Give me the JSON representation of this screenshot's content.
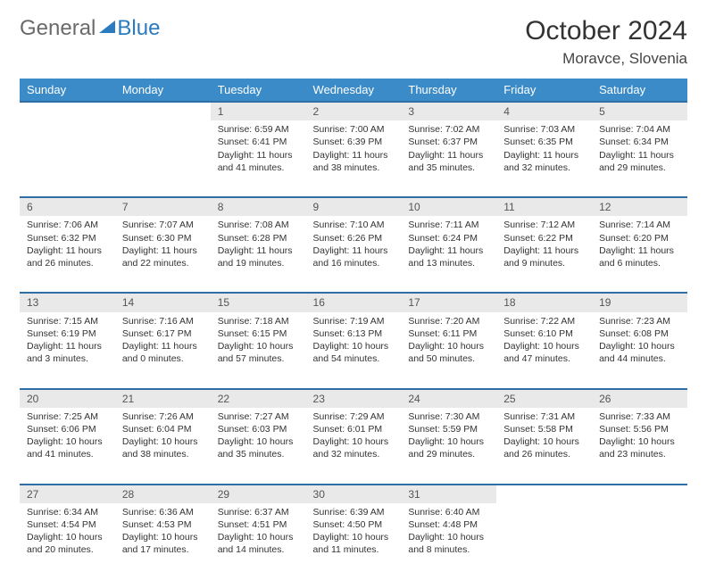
{
  "brand": {
    "part1": "General",
    "part2": "Blue"
  },
  "title": "October 2024",
  "location": "Moravce, Slovenia",
  "header_bg": "#3b8bc8",
  "rule_color": "#2f6fa5",
  "daynum_bg": "#e9e9e9",
  "text_color": "#333333",
  "font_family": "Arial",
  "day_headers": [
    "Sunday",
    "Monday",
    "Tuesday",
    "Wednesday",
    "Thursday",
    "Friday",
    "Saturday"
  ],
  "weeks": [
    [
      null,
      null,
      {
        "n": "1",
        "sr": "6:59 AM",
        "ss": "6:41 PM",
        "dl": "11 hours and 41 minutes."
      },
      {
        "n": "2",
        "sr": "7:00 AM",
        "ss": "6:39 PM",
        "dl": "11 hours and 38 minutes."
      },
      {
        "n": "3",
        "sr": "7:02 AM",
        "ss": "6:37 PM",
        "dl": "11 hours and 35 minutes."
      },
      {
        "n": "4",
        "sr": "7:03 AM",
        "ss": "6:35 PM",
        "dl": "11 hours and 32 minutes."
      },
      {
        "n": "5",
        "sr": "7:04 AM",
        "ss": "6:34 PM",
        "dl": "11 hours and 29 minutes."
      }
    ],
    [
      {
        "n": "6",
        "sr": "7:06 AM",
        "ss": "6:32 PM",
        "dl": "11 hours and 26 minutes."
      },
      {
        "n": "7",
        "sr": "7:07 AM",
        "ss": "6:30 PM",
        "dl": "11 hours and 22 minutes."
      },
      {
        "n": "8",
        "sr": "7:08 AM",
        "ss": "6:28 PM",
        "dl": "11 hours and 19 minutes."
      },
      {
        "n": "9",
        "sr": "7:10 AM",
        "ss": "6:26 PM",
        "dl": "11 hours and 16 minutes."
      },
      {
        "n": "10",
        "sr": "7:11 AM",
        "ss": "6:24 PM",
        "dl": "11 hours and 13 minutes."
      },
      {
        "n": "11",
        "sr": "7:12 AM",
        "ss": "6:22 PM",
        "dl": "11 hours and 9 minutes."
      },
      {
        "n": "12",
        "sr": "7:14 AM",
        "ss": "6:20 PM",
        "dl": "11 hours and 6 minutes."
      }
    ],
    [
      {
        "n": "13",
        "sr": "7:15 AM",
        "ss": "6:19 PM",
        "dl": "11 hours and 3 minutes."
      },
      {
        "n": "14",
        "sr": "7:16 AM",
        "ss": "6:17 PM",
        "dl": "11 hours and 0 minutes."
      },
      {
        "n": "15",
        "sr": "7:18 AM",
        "ss": "6:15 PM",
        "dl": "10 hours and 57 minutes."
      },
      {
        "n": "16",
        "sr": "7:19 AM",
        "ss": "6:13 PM",
        "dl": "10 hours and 54 minutes."
      },
      {
        "n": "17",
        "sr": "7:20 AM",
        "ss": "6:11 PM",
        "dl": "10 hours and 50 minutes."
      },
      {
        "n": "18",
        "sr": "7:22 AM",
        "ss": "6:10 PM",
        "dl": "10 hours and 47 minutes."
      },
      {
        "n": "19",
        "sr": "7:23 AM",
        "ss": "6:08 PM",
        "dl": "10 hours and 44 minutes."
      }
    ],
    [
      {
        "n": "20",
        "sr": "7:25 AM",
        "ss": "6:06 PM",
        "dl": "10 hours and 41 minutes."
      },
      {
        "n": "21",
        "sr": "7:26 AM",
        "ss": "6:04 PM",
        "dl": "10 hours and 38 minutes."
      },
      {
        "n": "22",
        "sr": "7:27 AM",
        "ss": "6:03 PM",
        "dl": "10 hours and 35 minutes."
      },
      {
        "n": "23",
        "sr": "7:29 AM",
        "ss": "6:01 PM",
        "dl": "10 hours and 32 minutes."
      },
      {
        "n": "24",
        "sr": "7:30 AM",
        "ss": "5:59 PM",
        "dl": "10 hours and 29 minutes."
      },
      {
        "n": "25",
        "sr": "7:31 AM",
        "ss": "5:58 PM",
        "dl": "10 hours and 26 minutes."
      },
      {
        "n": "26",
        "sr": "7:33 AM",
        "ss": "5:56 PM",
        "dl": "10 hours and 23 minutes."
      }
    ],
    [
      {
        "n": "27",
        "sr": "6:34 AM",
        "ss": "4:54 PM",
        "dl": "10 hours and 20 minutes."
      },
      {
        "n": "28",
        "sr": "6:36 AM",
        "ss": "4:53 PM",
        "dl": "10 hours and 17 minutes."
      },
      {
        "n": "29",
        "sr": "6:37 AM",
        "ss": "4:51 PM",
        "dl": "10 hours and 14 minutes."
      },
      {
        "n": "30",
        "sr": "6:39 AM",
        "ss": "4:50 PM",
        "dl": "10 hours and 11 minutes."
      },
      {
        "n": "31",
        "sr": "6:40 AM",
        "ss": "4:48 PM",
        "dl": "10 hours and 8 minutes."
      },
      null,
      null
    ]
  ],
  "labels": {
    "sunrise": "Sunrise: ",
    "sunset": "Sunset: ",
    "daylight": "Daylight: "
  }
}
